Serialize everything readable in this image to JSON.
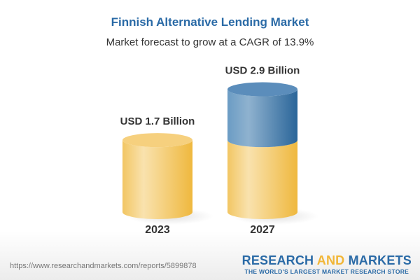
{
  "title": "Finnish Alternative Lending Market",
  "subtitle": "Market forecast to grow at a CAGR of 13.9%",
  "chart_data": {
    "type": "bar",
    "style": "3d-cylinder",
    "categories": [
      "2023",
      "2027"
    ],
    "values": [
      1.7,
      2.9
    ],
    "unit": "USD Billion",
    "data_labels": [
      "USD 1.7 Billion",
      "USD 2.9 Billion"
    ],
    "base_value": 1.7,
    "colors": {
      "base": "#f2c25a",
      "growth": "#3f7bb0"
    },
    "grid": false
  },
  "footer": {
    "url": "https://www.researchandmarkets.com/reports/5899878",
    "logo_part1": "RESEARCH ",
    "logo_part2": "AND",
    "logo_part3": " MARKETS",
    "logo_tagline": "THE WORLD'S LARGEST MARKET RESEARCH STORE"
  }
}
